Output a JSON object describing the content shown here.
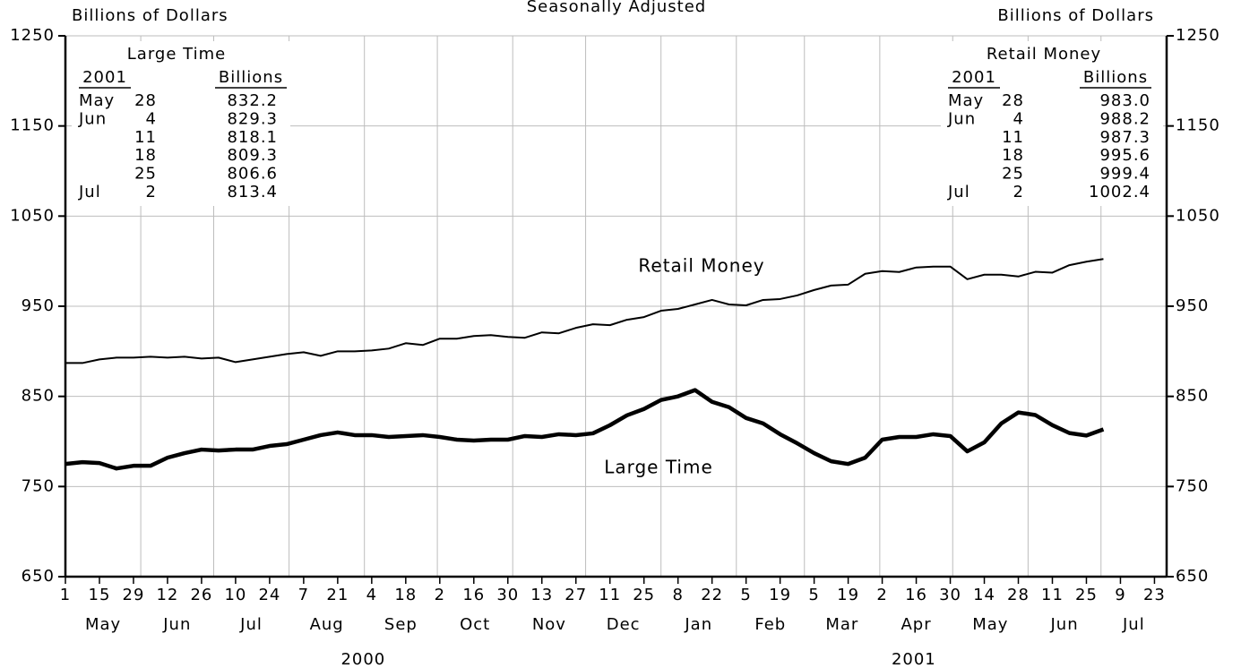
{
  "chart_data": {
    "type": "line",
    "title": "Seasonally Adjusted",
    "y_label": "Billions of Dollars",
    "y2_label": "Billions of Dollars",
    "x": [
      "2000-05-01",
      "2000-05-08",
      "2000-05-15",
      "2000-05-22",
      "2000-05-29",
      "2000-06-05",
      "2000-06-12",
      "2000-06-19",
      "2000-06-26",
      "2000-07-03",
      "2000-07-10",
      "2000-07-17",
      "2000-07-24",
      "2000-07-31",
      "2000-08-07",
      "2000-08-14",
      "2000-08-21",
      "2000-08-28",
      "2000-09-04",
      "2000-09-11",
      "2000-09-18",
      "2000-09-25",
      "2000-10-02",
      "2000-10-09",
      "2000-10-16",
      "2000-10-23",
      "2000-10-30",
      "2000-11-06",
      "2000-11-13",
      "2000-11-20",
      "2000-11-27",
      "2000-12-04",
      "2000-12-11",
      "2000-12-18",
      "2000-12-25",
      "2001-01-01",
      "2001-01-08",
      "2001-01-15",
      "2001-01-22",
      "2001-01-29",
      "2001-02-05",
      "2001-02-12",
      "2001-02-19",
      "2001-02-26",
      "2001-03-05",
      "2001-03-12",
      "2001-03-19",
      "2001-03-26",
      "2001-04-02",
      "2001-04-09",
      "2001-04-16",
      "2001-04-23",
      "2001-04-30",
      "2001-05-07",
      "2001-05-14",
      "2001-05-21",
      "2001-05-28",
      "2001-06-04",
      "2001-06-11",
      "2001-06-18",
      "2001-06-25",
      "2001-07-02"
    ],
    "series": [
      {
        "name": "Retail Money",
        "color": "#000000",
        "line_width": 2,
        "values": [
          887,
          887,
          891,
          893,
          893,
          894,
          893,
          894,
          892,
          893,
          888,
          891,
          894,
          897,
          899,
          895,
          900,
          900,
          901,
          903,
          909,
          907,
          914,
          914,
          917,
          918,
          916,
          915,
          921,
          920,
          926,
          930,
          929,
          935,
          938,
          945,
          947,
          952,
          957,
          952,
          951,
          957,
          958,
          962,
          968,
          973,
          974,
          986,
          989,
          988,
          993,
          994,
          994,
          980,
          985,
          985,
          983.0,
          988.2,
          987.3,
          995.6,
          999.4,
          1002.4
        ]
      },
      {
        "name": "Large Time",
        "color": "#000000",
        "line_width": 4.5,
        "values": [
          775,
          777,
          776,
          770,
          773,
          773,
          782,
          787,
          791,
          790,
          791,
          791,
          795,
          797,
          802,
          807,
          810,
          807,
          807,
          805,
          806,
          807,
          805,
          802,
          801,
          802,
          802,
          806,
          805,
          808,
          807,
          809,
          818,
          829,
          836,
          846,
          850,
          857,
          844,
          838,
          826,
          820,
          808,
          798,
          787,
          778,
          775,
          782,
          802,
          805,
          805,
          808,
          806,
          789,
          799,
          820,
          832.2,
          829.3,
          818.1,
          809.3,
          806.6,
          813.4
        ]
      }
    ],
    "xlim": [
      "2000-05-01",
      "2001-07-28"
    ],
    "xticks": [
      {
        "value": "2000-05-01",
        "label": "1"
      },
      {
        "value": "2000-05-15",
        "label": "15"
      },
      {
        "value": "2000-05-29",
        "label": "29"
      },
      {
        "value": "2000-06-12",
        "label": "12"
      },
      {
        "value": "2000-06-26",
        "label": "26"
      },
      {
        "value": "2000-07-10",
        "label": "10"
      },
      {
        "value": "2000-07-24",
        "label": "24"
      },
      {
        "value": "2000-08-07",
        "label": "7"
      },
      {
        "value": "2000-08-21",
        "label": "21"
      },
      {
        "value": "2000-09-04",
        "label": "4"
      },
      {
        "value": "2000-09-18",
        "label": "18"
      },
      {
        "value": "2000-10-02",
        "label": "2"
      },
      {
        "value": "2000-10-16",
        "label": "16"
      },
      {
        "value": "2000-10-30",
        "label": "30"
      },
      {
        "value": "2000-11-13",
        "label": "13"
      },
      {
        "value": "2000-11-27",
        "label": "27"
      },
      {
        "value": "2000-12-11",
        "label": "11"
      },
      {
        "value": "2000-12-25",
        "label": "25"
      },
      {
        "value": "2001-01-08",
        "label": "8"
      },
      {
        "value": "2001-01-22",
        "label": "22"
      },
      {
        "value": "2001-02-05",
        "label": "5"
      },
      {
        "value": "2001-02-19",
        "label": "19"
      },
      {
        "value": "2001-03-05",
        "label": "5"
      },
      {
        "value": "2001-03-19",
        "label": "19"
      },
      {
        "value": "2001-04-02",
        "label": "2"
      },
      {
        "value": "2001-04-16",
        "label": "16"
      },
      {
        "value": "2001-04-30",
        "label": "30"
      },
      {
        "value": "2001-05-14",
        "label": "14"
      },
      {
        "value": "2001-05-28",
        "label": "28"
      },
      {
        "value": "2001-06-11",
        "label": "11"
      },
      {
        "value": "2001-06-25",
        "label": "25"
      },
      {
        "value": "2001-07-09",
        "label": "9"
      },
      {
        "value": "2001-07-23",
        "label": "23"
      }
    ],
    "months": [
      {
        "value": "2000-05",
        "label": "May"
      },
      {
        "value": "2000-06",
        "label": "Jun"
      },
      {
        "value": "2000-07",
        "label": "Jul"
      },
      {
        "value": "2000-08",
        "label": "Aug"
      },
      {
        "value": "2000-09",
        "label": "Sep"
      },
      {
        "value": "2000-10",
        "label": "Oct"
      },
      {
        "value": "2000-11",
        "label": "Nov"
      },
      {
        "value": "2000-12",
        "label": "Dec"
      },
      {
        "value": "2001-01",
        "label": "Jan"
      },
      {
        "value": "2001-02",
        "label": "Feb"
      },
      {
        "value": "2001-03",
        "label": "Mar"
      },
      {
        "value": "2001-04",
        "label": "Apr"
      },
      {
        "value": "2001-05",
        "label": "May"
      },
      {
        "value": "2001-06",
        "label": "Jun"
      },
      {
        "value": "2001-07",
        "label": "Jul"
      }
    ],
    "years": [
      "2000",
      "2001"
    ],
    "ylim": [
      650,
      1250
    ],
    "yticks": [
      650,
      750,
      850,
      950,
      1050,
      1150,
      1250
    ],
    "y2lim": [
      650,
      1250
    ],
    "y2ticks": [
      650,
      750,
      850,
      950,
      1050,
      1150,
      1250
    ],
    "grid": true,
    "tables": [
      {
        "title": "Large Time",
        "year": "2001",
        "unit": "Billions",
        "rows": [
          {
            "month": "May",
            "day": "28",
            "value": "832.2"
          },
          {
            "month": "Jun",
            "day": "4",
            "value": "829.3"
          },
          {
            "day": "11",
            "value": "818.1"
          },
          {
            "day": "18",
            "value": "809.3"
          },
          {
            "day": "25",
            "value": "806.6"
          },
          {
            "month": "Jul",
            "day": "2",
            "value": "813.4"
          }
        ]
      },
      {
        "title": "Retail Money",
        "year": "2001",
        "unit": "Billions",
        "rows": [
          {
            "month": "May",
            "day": "28",
            "value": "983.0"
          },
          {
            "month": "Jun",
            "day": "4",
            "value": "988.2"
          },
          {
            "day": "11",
            "value": "987.3"
          },
          {
            "day": "18",
            "value": "995.6"
          },
          {
            "day": "25",
            "value": "999.4"
          },
          {
            "month": "Jul",
            "day": "2",
            "value": "1002.4"
          }
        ]
      }
    ]
  }
}
